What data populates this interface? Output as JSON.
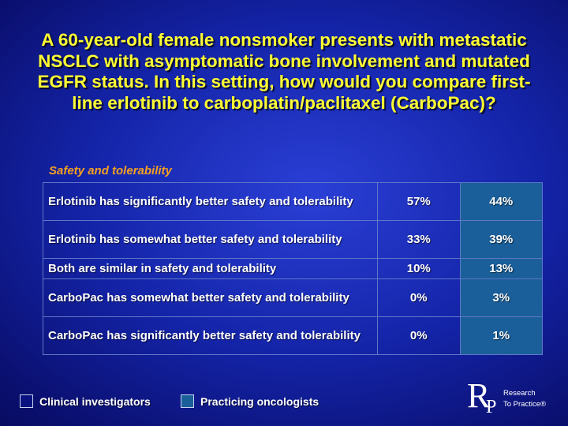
{
  "slide": {
    "title": "A 60-year-old female nonsmoker presents with metastatic NSCLC with asymptomatic bone involvement and mutated EGFR status. In this setting, how would you compare first-line erlotinib to carboplatin/paclitaxel (CarboPac)?",
    "section_label": "Safety and tolerability"
  },
  "table": {
    "rows": [
      {
        "label": "Erlotinib has significantly better safety and tolerability",
        "investigators": "57%",
        "oncologists": "44%"
      },
      {
        "label": "Erlotinib has somewhat better safety and tolerability",
        "investigators": "33%",
        "oncologists": "39%"
      },
      {
        "label": "Both are similar in safety and tolerability",
        "investigators": "10%",
        "oncologists": "13%"
      },
      {
        "label": "CarboPac has somewhat better safety and tolerability",
        "investigators": "0%",
        "oncologists": "3%"
      },
      {
        "label": "CarboPac has significantly better safety and tolerability",
        "investigators": "0%",
        "oncologists": "1%"
      }
    ]
  },
  "legend": {
    "investigators": {
      "label": "Clinical investigators",
      "color": "#0a1280"
    },
    "oncologists": {
      "label": "Practicing oncologists",
      "color": "#1a5f9a"
    }
  },
  "logo": {
    "letter_r": "R",
    "letter_p": "P",
    "line1": "Research",
    "line2": "To Practice®"
  },
  "colors": {
    "title": "#ffff33",
    "section_label": "#f6a020",
    "background": "#1424a8"
  }
}
